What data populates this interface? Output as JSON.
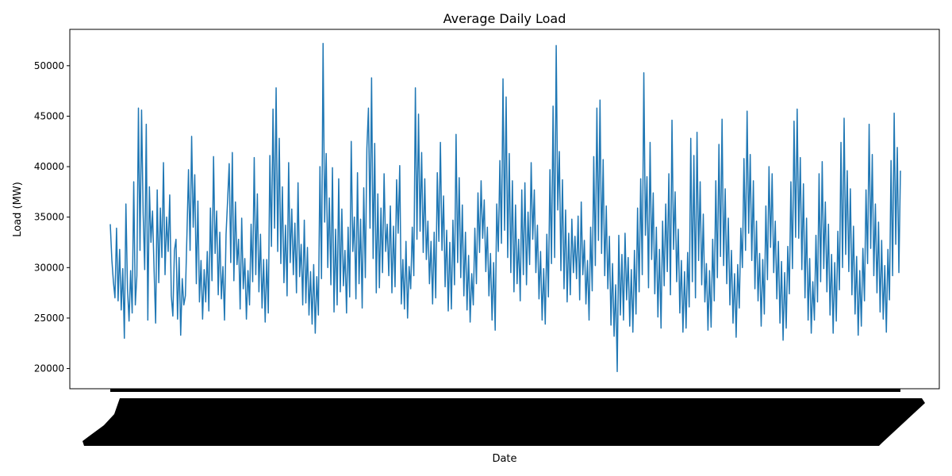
{
  "chart_data": {
    "type": "line",
    "title": "Average Daily Load",
    "xlabel": "Date",
    "ylabel": "Load (MW)",
    "ylim": [
      18000,
      53600
    ],
    "yticks": [
      20000,
      25000,
      30000,
      35000,
      40000,
      45000,
      50000
    ],
    "ytick_labels": [
      "20000",
      "25000",
      "30000",
      "35000",
      "40000",
      "45000",
      "50000"
    ],
    "x_tick_labels_legible": false,
    "grid": false,
    "legend": "none",
    "series": [
      {
        "color": "#1f77b4",
        "values": [
          34300,
          30800,
          28600,
          27000,
          33900,
          26700,
          31800,
          25800,
          29900,
          23000,
          36300,
          27900,
          24700,
          29700,
          25500,
          38500,
          26300,
          29200,
          45800,
          31700,
          45600,
          35400,
          29800,
          44200,
          24800,
          38000,
          32500,
          35600,
          29800,
          24500,
          37700,
          28500,
          35900,
          31000,
          40400,
          29300,
          35000,
          31600,
          37200,
          27200,
          25200,
          31700,
          32800,
          24900,
          31000,
          23300,
          28900,
          26300,
          27200,
          33300,
          39700,
          31700,
          43000,
          34000,
          39200,
          28400,
          36600,
          26600,
          30700,
          24900,
          29800,
          26600,
          31600,
          25700,
          35900,
          28700,
          41000,
          31400,
          35600,
          27300,
          33500,
          26900,
          30100,
          24800,
          33300,
          36700,
          40300,
          30500,
          41400,
          28700,
          36500,
          30300,
          32800,
          25900,
          34900,
          27900,
          30900,
          24900,
          29700,
          26300,
          34300,
          28600,
          40900,
          29300,
          37300,
          27600,
          33300,
          26000,
          30800,
          24600,
          30800,
          25500,
          41100,
          32100,
          45700,
          33900,
          47800,
          31600,
          42800,
          30400,
          38000,
          28500,
          34200,
          27200,
          40400,
          30500,
          35800,
          29300,
          34400,
          27500,
          38400,
          29100,
          32300,
          26300,
          34700,
          26500,
          32000,
          25300,
          29600,
          24400,
          30300,
          23500,
          29100,
          25300,
          40000,
          28900,
          52200,
          34500,
          41300,
          30000,
          36900,
          28300,
          39900,
          25600,
          33800,
          26300,
          38800,
          27600,
          35800,
          28200,
          31700,
          25500,
          34000,
          27100,
          42500,
          31600,
          35000,
          26900,
          39400,
          28400,
          34800,
          26000,
          37900,
          29000,
          41800,
          45800,
          33900,
          48800,
          30900,
          42300,
          27500,
          37300,
          28000,
          35900,
          29500,
          39300,
          31600,
          34300,
          29200,
          36100,
          27500,
          34100,
          28100,
          38700,
          33400,
          40100,
          26400,
          30800,
          25900,
          32600,
          25000,
          30100,
          27900,
          34000,
          29200,
          47800,
          32800,
          45200,
          33600,
          41400,
          31500,
          38800,
          30800,
          34600,
          28400,
          32600,
          26400,
          33500,
          27000,
          39400,
          32600,
          42400,
          31700,
          37100,
          28100,
          33700,
          25700,
          32500,
          25900,
          34700,
          28300,
          43200,
          30500,
          38900,
          29000,
          36200,
          27200,
          33500,
          25800,
          31200,
          24600,
          29400,
          26300,
          33900,
          28400,
          37400,
          31500,
          38600,
          32900,
          36700,
          29600,
          34000,
          27200,
          31400,
          24800,
          30500,
          23800,
          36300,
          31600,
          40600,
          32400,
          48700,
          33700,
          46900,
          31000,
          41300,
          29500,
          38600,
          27600,
          36200,
          28400,
          32800,
          26700,
          37700,
          29300,
          38400,
          28300,
          35500,
          30300,
          40400,
          32800,
          37700,
          29500,
          34200,
          26900,
          31600,
          24800,
          29900,
          24400,
          33300,
          27100,
          39700,
          30400,
          46000,
          31000,
          52000,
          35700,
          41500,
          29700,
          38700,
          27900,
          35700,
          26600,
          33400,
          27300,
          34800,
          29500,
          33100,
          28900,
          35100,
          26800,
          36500,
          29300,
          32700,
          26400,
          30700,
          24800,
          34000,
          27700,
          41000,
          30200,
          45800,
          32700,
          46600,
          31400,
          40700,
          29200,
          36100,
          27900,
          33100,
          24300,
          30400,
          23200,
          28300,
          19700,
          33200,
          25300,
          31300,
          24800,
          33400,
          26800,
          31000,
          24200,
          29800,
          23600,
          31700,
          25400,
          35900,
          27600,
          38800,
          29300,
          49300,
          33200,
          39000,
          28000,
          42400,
          30800,
          37400,
          27400,
          34000,
          25100,
          31800,
          24000,
          34600,
          28200,
          36300,
          29600,
          39300,
          27300,
          44600,
          31800,
          37500,
          28600,
          33800,
          25500,
          30700,
          23600,
          29600,
          24000,
          31500,
          26100,
          42800,
          28600,
          41100,
          27000,
          43400,
          30700,
          38500,
          28300,
          35300,
          26600,
          30400,
          23800,
          29700,
          24100,
          32800,
          26700,
          38600,
          29000,
          42200,
          31100,
          44700,
          30200,
          37800,
          28400,
          34900,
          26300,
          31700,
          24500,
          29400,
          23100,
          30300,
          26000,
          33900,
          30000,
          40800,
          31700,
          45500,
          33400,
          41200,
          30700,
          38600,
          27900,
          34600,
          26700,
          31400,
          24200,
          30800,
          25400,
          36100,
          28800,
          40000,
          32000,
          39300,
          29500,
          34600,
          26900,
          32600,
          24500,
          30600,
          22800,
          29500,
          24000,
          32100,
          27400,
          38500,
          29900,
          44500,
          33000,
          45700,
          32900,
          40900,
          29800,
          38300,
          27000,
          34900,
          24800,
          30900,
          23500,
          28600,
          24800,
          33200,
          26600,
          39300,
          28600,
          40500,
          29900,
          36500,
          27600,
          34300,
          25300,
          31300,
          23500,
          30500,
          24700,
          33600,
          27800,
          42400,
          30000,
          44800,
          31300,
          39600,
          29600,
          37800,
          27300,
          34100,
          25400,
          31100,
          23300,
          29700,
          24200,
          31900,
          26700,
          37700,
          30400,
          44200,
          31900,
          41200,
          29200,
          36300,
          27500,
          34500,
          25600,
          32700,
          24900,
          30200,
          23600,
          31800,
          26800,
          40600,
          29200,
          45300,
          32300,
          41900,
          29500,
          39600
        ]
      }
    ]
  }
}
